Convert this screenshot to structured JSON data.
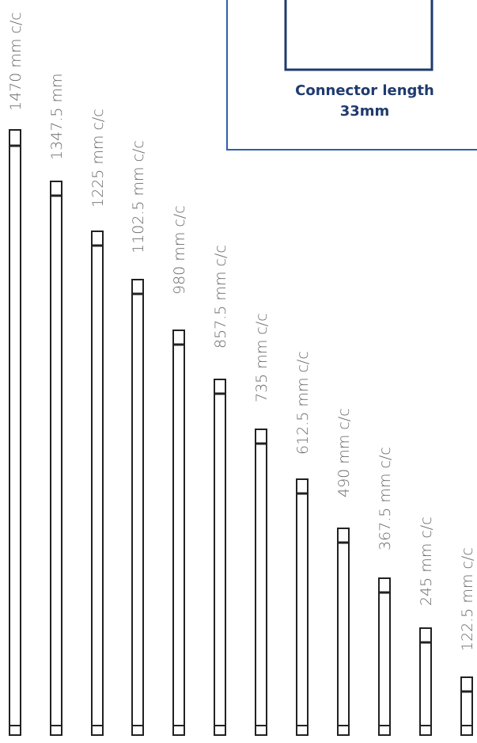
{
  "connector_panel": {
    "caption_line1": "Connector length",
    "caption_line2": "33mm",
    "border_color": "#2e5fa8",
    "text_color": "#1f3b6e"
  },
  "rods": [
    {
      "label": "1470 mm c/c"
    },
    {
      "label": "1347.5 mm"
    },
    {
      "label": "1225 mm c/c"
    },
    {
      "label": "1102.5 mm c/c"
    },
    {
      "label": "980 mm c/c"
    },
    {
      "label": "857.5 mm c/c"
    },
    {
      "label": "735 mm c/c"
    },
    {
      "label": "612.5 mm c/c"
    },
    {
      "label": "490 mm c/c"
    },
    {
      "label": "367.5 mm c/c"
    },
    {
      "label": "245 mm c/c"
    },
    {
      "label": "122.5 mm c/c"
    }
  ]
}
